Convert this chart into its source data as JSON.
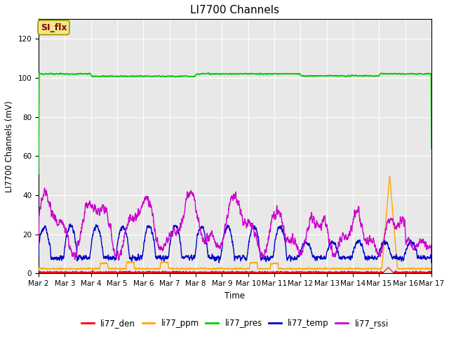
{
  "title": "LI7700 Channels",
  "ylabel": "LI7700 Channels (mV)",
  "xlabel": "Time",
  "ylim": [
    0,
    130
  ],
  "yticks": [
    0,
    20,
    40,
    60,
    80,
    100,
    120
  ],
  "xtick_labels": [
    "Mar 2",
    "Mar 3",
    "Mar 4",
    "Mar 5",
    "Mar 6",
    "Mar 7",
    "Mar 8",
    "Mar 9",
    "Mar 10",
    "Mar 11",
    "Mar 12",
    "Mar 13",
    "Mar 14",
    "Mar 15",
    "Mar 16",
    "Mar 17"
  ],
  "bg_color": "#e8e8e8",
  "fig_color": "#ffffff",
  "annotation_text": "SI_flx",
  "annotation_color": "#8b0000",
  "annotation_bg": "#f0e68c",
  "series_colors": {
    "li77_den": "#ff0000",
    "li77_ppm": "#ffa500",
    "li77_pres": "#00cc00",
    "li77_temp": "#0000cc",
    "li77_rssi": "#cc00cc"
  },
  "legend_labels": [
    "li77_den",
    "li77_ppm",
    "li77_pres",
    "li77_temp",
    "li77_rssi"
  ]
}
